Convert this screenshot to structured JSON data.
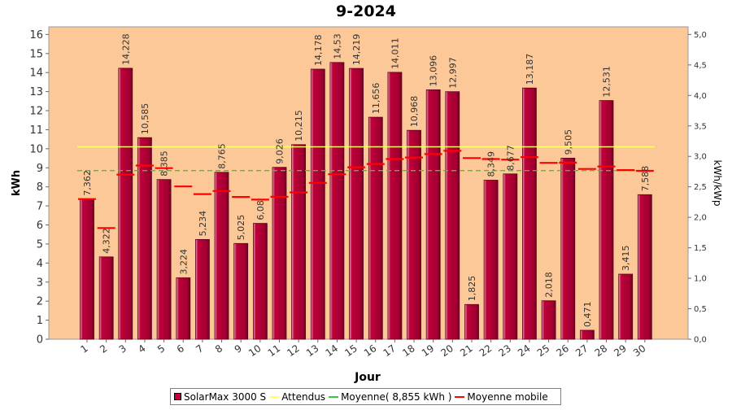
{
  "chart_data": {
    "type": "bar",
    "title": "9-2024",
    "xlabel": "Jour",
    "ylabel": "kWh",
    "y2label": "kWh/kWp",
    "ylim": [
      0,
      16.4
    ],
    "y2lim": [
      0,
      5.125
    ],
    "yticks": [
      "0",
      "1",
      "2",
      "3",
      "4",
      "5",
      "6",
      "7",
      "8",
      "9",
      "10",
      "11",
      "12",
      "13",
      "14",
      "15",
      "16"
    ],
    "y2ticks": [
      "0,0",
      "0,5",
      "1,0",
      "1,5",
      "2,0",
      "2,5",
      "3,0",
      "3,5",
      "4,0",
      "4,5",
      "5,0"
    ],
    "categories": [
      "1",
      "2",
      "3",
      "4",
      "5",
      "6",
      "7",
      "8",
      "9",
      "10",
      "11",
      "12",
      "13",
      "14",
      "15",
      "16",
      "17",
      "18",
      "19",
      "20",
      "21",
      "22",
      "23",
      "24",
      "25",
      "26",
      "27",
      "28",
      "29",
      "30"
    ],
    "grid": false,
    "legend_position": "bottom",
    "colors": {
      "plot_background": "#fdc898",
      "bar": "#c0003a",
      "expected": "#ffff66",
      "average": "#33cc33",
      "moving_average": "#ff0000"
    },
    "series": [
      {
        "name": "SolarMax 3000 S",
        "values": [
          7.362,
          4.322,
          14.228,
          10.585,
          8.385,
          3.224,
          5.234,
          8.765,
          5.025,
          6.08,
          9.026,
          10.215,
          14.178,
          14.53,
          14.219,
          11.656,
          14.011,
          10.968,
          13.096,
          12.997,
          1.825,
          8.349,
          8.677,
          13.187,
          2.018,
          9.505,
          0.471,
          12.531,
          3.415,
          7.588
        ],
        "labels": [
          "7,362",
          "4,322",
          "14,228",
          "10,585",
          "8,385",
          "3,224",
          "5,234",
          "8,765",
          "5,025",
          "6,08",
          "9,026",
          "10,215",
          "14,178",
          "14,53",
          "14,219",
          "11,656",
          "14,011",
          "10,968",
          "13,096",
          "12,997",
          "1,825",
          "8,349",
          "8,677",
          "13,187",
          "2,018",
          "9,505",
          "0,471",
          "12,531",
          "3,415",
          "7,588"
        ]
      },
      {
        "name": "Attendus",
        "value": 10.1
      },
      {
        "name": "Moyenne( 8,855 kWh )",
        "value": 8.855
      },
      {
        "name": "Moyenne mobile",
        "values": [
          7.36,
          5.84,
          8.64,
          9.12,
          8.98,
          8.02,
          7.62,
          7.78,
          7.47,
          7.33,
          7.48,
          7.71,
          8.21,
          8.66,
          9.03,
          9.2,
          9.46,
          9.54,
          9.72,
          9.89,
          9.51,
          9.46,
          9.43,
          9.56,
          9.26,
          9.27,
          8.94,
          9.07,
          8.88,
          8.84
        ]
      }
    ]
  }
}
